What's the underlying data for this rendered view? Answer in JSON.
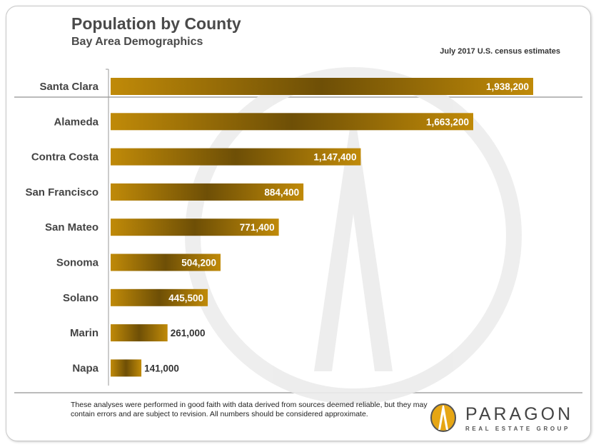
{
  "chart_data": {
    "type": "bar",
    "orientation": "horizontal",
    "title": "Population by County",
    "subtitle": "Bay Area Demographics",
    "note": "July 2017 U.S. census estimates",
    "categories": [
      "Santa Clara",
      "Alameda",
      "Contra Costa",
      "San Francisco",
      "San Mateo",
      "Sonoma",
      "Solano",
      "Marin",
      "Napa"
    ],
    "values": [
      1938200,
      1663200,
      1147400,
      884400,
      771400,
      504200,
      445500,
      261000,
      141000
    ],
    "labels": [
      "1,938,200",
      "1,663,200",
      "1,147,400",
      "884,400",
      "771,400",
      "504,200",
      "445,500",
      "261,000",
      "141,000"
    ],
    "xlim": [
      0,
      1938200
    ],
    "grid": false,
    "bar_color_light": "#c08a08",
    "bar_color_dark": "#6e4f06"
  },
  "footer": {
    "disclaimer": "These analyses were performed in good faith with data derived from sources deemed reliable, but they may contain errors and are subject to revision.  All numbers should be considered approximate.",
    "logo_name": "PARAGON",
    "logo_sub": "REAL ESTATE GROUP",
    "logo_color": "#e6a614"
  }
}
